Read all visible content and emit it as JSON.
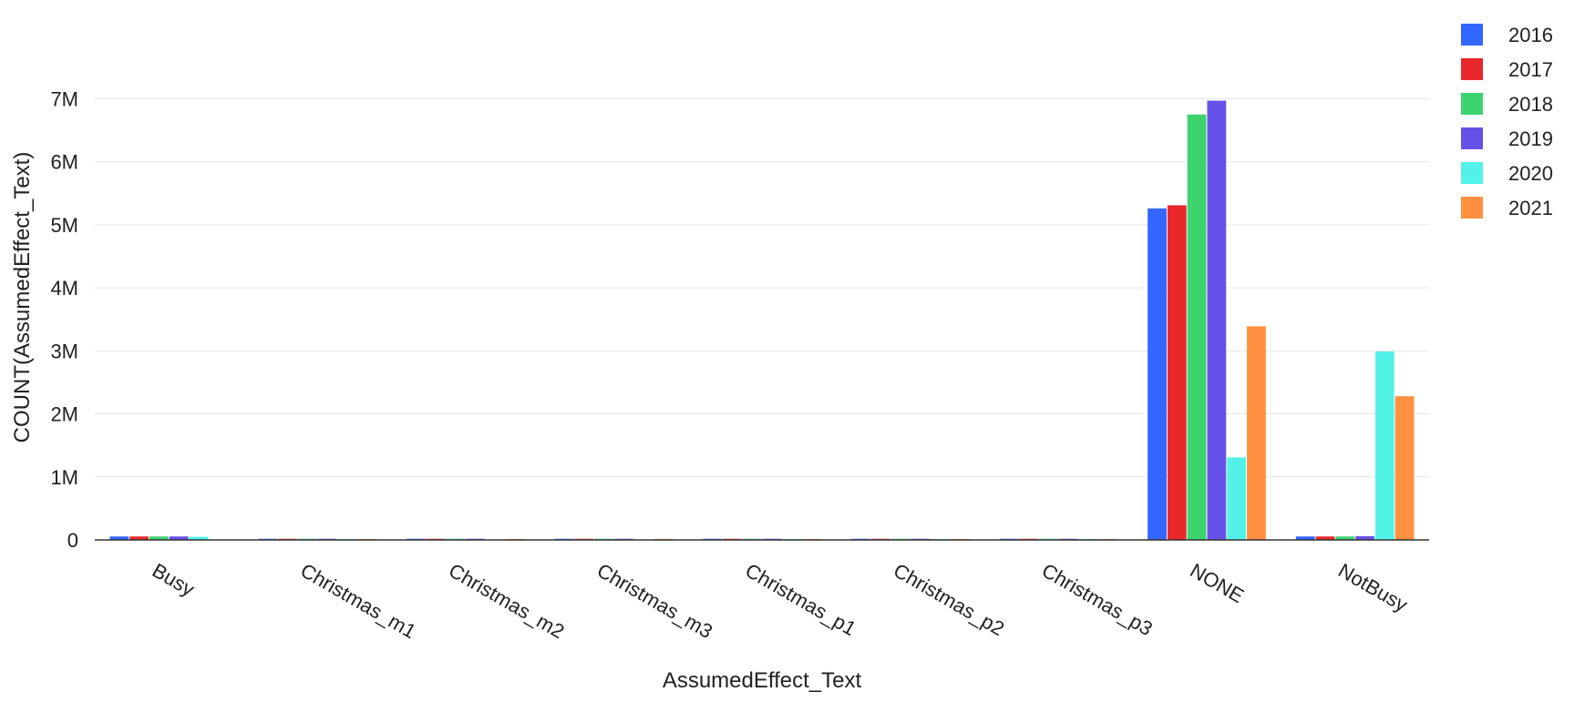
{
  "chart_data": {
    "type": "bar",
    "title": "",
    "xlabel": "AssumedEffect_Text",
    "ylabel": "COUNT(AssumedEffect_Text)",
    "categories": [
      "Busy",
      "Christmas_m1",
      "Christmas_m2",
      "Christmas_m3",
      "Christmas_p1",
      "Christmas_p2",
      "Christmas_p3",
      "NONE",
      "NotBusy"
    ],
    "ylim": [
      0,
      7700000
    ],
    "yticks": [
      0,
      1000000,
      2000000,
      3000000,
      4000000,
      5000000,
      6000000,
      7000000
    ],
    "ytick_labels": [
      "0",
      "1M",
      "2M",
      "3M",
      "4M",
      "5M",
      "6M",
      "7M"
    ],
    "grid": true,
    "legend_position": "top-right",
    "series": [
      {
        "name": "2016",
        "color": "#3366ff",
        "values": [
          55000,
          18000,
          18000,
          18000,
          18000,
          18000,
          18000,
          5260000,
          55000
        ]
      },
      {
        "name": "2017",
        "color": "#e8282b",
        "values": [
          55000,
          18000,
          18000,
          18000,
          18000,
          18000,
          18000,
          5310000,
          55000
        ]
      },
      {
        "name": "2018",
        "color": "#3dd36f",
        "values": [
          55000,
          18000,
          18000,
          18000,
          18000,
          18000,
          18000,
          6750000,
          55000
        ]
      },
      {
        "name": "2019",
        "color": "#6652e8",
        "values": [
          55000,
          18000,
          18000,
          18000,
          18000,
          18000,
          18000,
          6970000,
          60000
        ]
      },
      {
        "name": "2020",
        "color": "#52f2e8",
        "values": [
          50000,
          15000,
          0,
          0,
          15000,
          15000,
          15000,
          1310000,
          2990000
        ]
      },
      {
        "name": "2021",
        "color": "#ff9040",
        "values": [
          0,
          15000,
          15000,
          15000,
          15000,
          15000,
          15000,
          3390000,
          2280000
        ]
      }
    ]
  }
}
